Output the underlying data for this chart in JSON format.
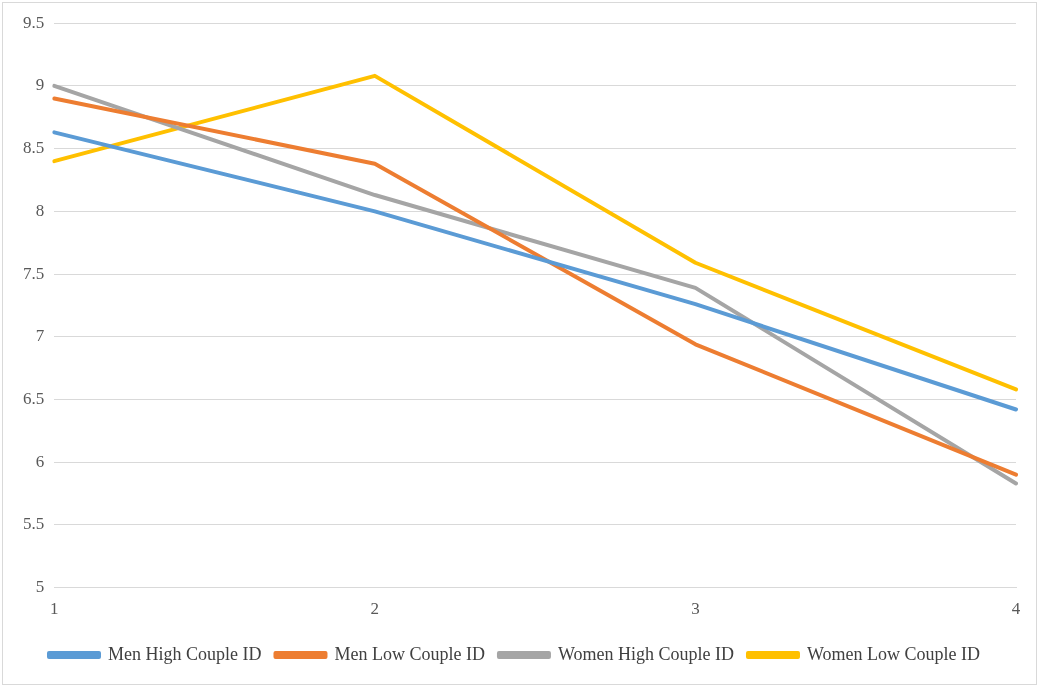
{
  "chart_data": {
    "type": "line",
    "categories": [
      "1",
      "2",
      "3",
      "4"
    ],
    "series": [
      {
        "name": "Men High Couple ID",
        "color": "#5b9bd5",
        "values": [
          8.63,
          8.0,
          7.26,
          6.42
        ]
      },
      {
        "name": "Men Low Couple ID",
        "color": "#ed7d31",
        "values": [
          8.9,
          8.38,
          6.94,
          5.9
        ]
      },
      {
        "name": "Women High Couple ID",
        "color": "#a5a5a5",
        "values": [
          9.0,
          8.13,
          7.39,
          5.83
        ]
      },
      {
        "name": "Women Low Couple ID",
        "color": "#ffc000",
        "values": [
          8.4,
          9.08,
          7.59,
          6.58
        ]
      }
    ],
    "ylim": [
      5,
      9.5
    ],
    "yticks": [
      5,
      5.5,
      6,
      6.5,
      7,
      7.5,
      8,
      8.5,
      9,
      9.5
    ],
    "grid": "y",
    "legend": "bottom",
    "marker": "none",
    "line_style": "solid"
  }
}
